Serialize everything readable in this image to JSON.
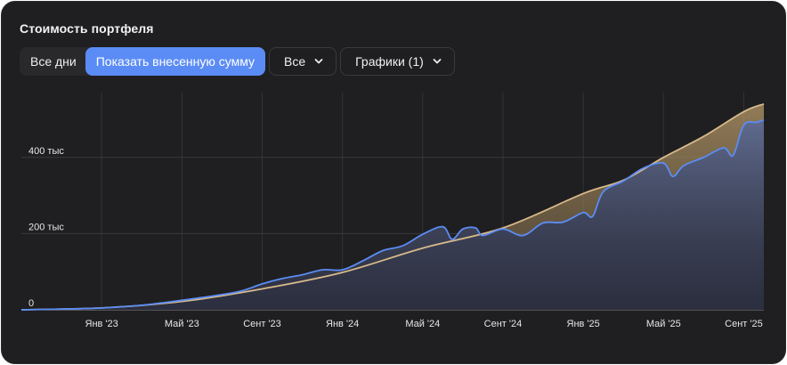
{
  "header": {
    "title": "Стоимость портфеля"
  },
  "toolbar": {
    "all_days": "Все дни",
    "show_invested": "Показать внесенную сумму",
    "filter_label": "Все",
    "charts_label": "Графики (1)"
  },
  "colors": {
    "background": "#1f1f21",
    "portfolio_line": "#5b8cf5",
    "invested_line": "#d8b98a",
    "active_button": "#5b8cf5"
  },
  "chart_data": {
    "type": "area",
    "title": "Стоимость портфеля",
    "y_ticks": [
      {
        "value": 0,
        "label": "0"
      },
      {
        "value": 200000,
        "label": "200 тыс"
      },
      {
        "value": 400000,
        "label": "400 тыс"
      }
    ],
    "x_ticks": [
      {
        "date": "2023-01",
        "label": "Янв '23"
      },
      {
        "date": "2023-05",
        "label": "Май '23"
      },
      {
        "date": "2023-09",
        "label": "Сент '23"
      },
      {
        "date": "2024-01",
        "label": "Янв '24"
      },
      {
        "date": "2024-05",
        "label": "Май '24"
      },
      {
        "date": "2024-09",
        "label": "Сент '24"
      },
      {
        "date": "2025-01",
        "label": "Янв '25"
      },
      {
        "date": "2025-05",
        "label": "Май '25"
      },
      {
        "date": "2025-09",
        "label": "Сент '25"
      }
    ],
    "x_range": [
      "2022-09",
      "2025-10"
    ],
    "ylim": [
      0,
      570000
    ],
    "grid": true,
    "series": [
      {
        "color": "#5b8cf5",
        "points": [
          [
            "2022-09",
            0
          ],
          [
            "2022-12",
            3000
          ],
          [
            "2023-01",
            5000
          ],
          [
            "2023-03",
            12000
          ],
          [
            "2023-05",
            25000
          ],
          [
            "2023-07",
            40000
          ],
          [
            "2023-08",
            50000
          ],
          [
            "2023-09",
            68000
          ],
          [
            "2023-10",
            82000
          ],
          [
            "2023-11",
            92000
          ],
          [
            "2023-12",
            105000
          ],
          [
            "2024-01",
            105000
          ],
          [
            "2024-02",
            128000
          ],
          [
            "2024-03",
            155000
          ],
          [
            "2024-04",
            168000
          ],
          [
            "2024-05",
            198000
          ],
          [
            "2024-06",
            218000
          ],
          [
            "2024-06-15",
            185000
          ],
          [
            "2024-07",
            212000
          ],
          [
            "2024-07-20",
            215000
          ],
          [
            "2024-08",
            195000
          ],
          [
            "2024-09",
            212000
          ],
          [
            "2024-10",
            195000
          ],
          [
            "2024-11",
            228000
          ],
          [
            "2024-12",
            230000
          ],
          [
            "2025-01",
            255000
          ],
          [
            "2025-01-15",
            245000
          ],
          [
            "2025-02",
            310000
          ],
          [
            "2025-03",
            338000
          ],
          [
            "2025-04",
            372000
          ],
          [
            "2025-05",
            385000
          ],
          [
            "2025-05-15",
            350000
          ],
          [
            "2025-06",
            378000
          ],
          [
            "2025-07",
            400000
          ],
          [
            "2025-08",
            425000
          ],
          [
            "2025-08-15",
            405000
          ],
          [
            "2025-09",
            485000
          ],
          [
            "2025-09-20",
            492000
          ],
          [
            "2025-10",
            498000
          ]
        ]
      },
      {
        "color": "#d8b98a",
        "points": [
          [
            "2022-09",
            0
          ],
          [
            "2023-01",
            5000
          ],
          [
            "2023-05",
            22000
          ],
          [
            "2023-09",
            55000
          ],
          [
            "2024-01",
            98000
          ],
          [
            "2024-05",
            162000
          ],
          [
            "2024-09",
            215000
          ],
          [
            "2025-01",
            305000
          ],
          [
            "2025-03",
            340000
          ],
          [
            "2025-05",
            400000
          ],
          [
            "2025-07",
            455000
          ],
          [
            "2025-09",
            520000
          ],
          [
            "2025-10",
            540000
          ]
        ]
      }
    ]
  }
}
